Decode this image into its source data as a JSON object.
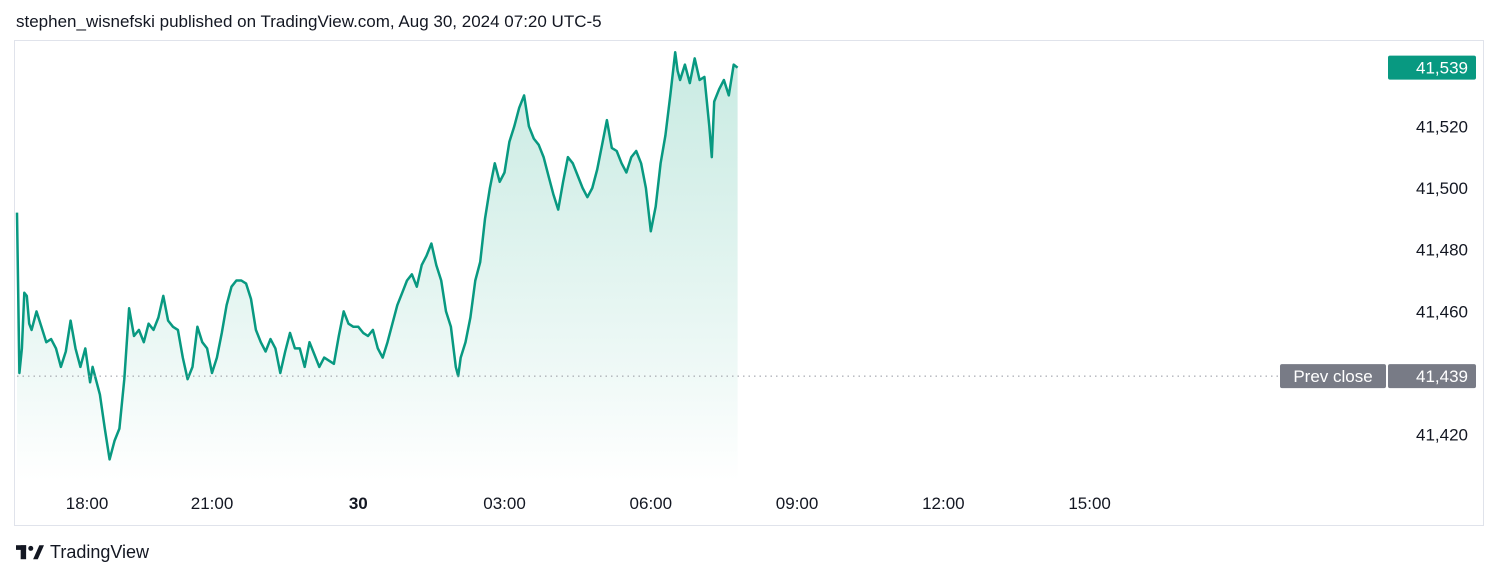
{
  "header": {
    "text": "stephen_wisnefski published on TradingView.com, Aug 30, 2024 07:20 UTC-5"
  },
  "footer": {
    "brand": "TradingView"
  },
  "colors": {
    "line": "#089981",
    "fill_top": "#b7e4d9",
    "last_price_bg": "#089981",
    "prev_close_bg": "#787b86",
    "grid": "#e0e3eb",
    "text": "#131722"
  },
  "chart_data": {
    "type": "area",
    "title": "",
    "xlabel": "",
    "ylabel": "",
    "ylim": [
      41405,
      41547
    ],
    "x_range_hours": [
      -7,
      18.7
    ],
    "x_axis": {
      "ticks": [
        {
          "label": "18:00",
          "hour": -6,
          "bold": false
        },
        {
          "label": "21:00",
          "hour": -3,
          "bold": false
        },
        {
          "label": "30",
          "hour": 0,
          "bold": true
        },
        {
          "label": "03:00",
          "hour": 3,
          "bold": false
        },
        {
          "label": "06:00",
          "hour": 6,
          "bold": false
        },
        {
          "label": "09:00",
          "hour": 9,
          "bold": false
        },
        {
          "label": "12:00",
          "hour": 12,
          "bold": false
        },
        {
          "label": "15:00",
          "hour": 15,
          "bold": false
        }
      ]
    },
    "y_axis": {
      "ticks": [
        41420,
        41460,
        41480,
        41500,
        41520
      ]
    },
    "prev_close": {
      "label": "Prev close",
      "value": 41439,
      "value_label": "41,439"
    },
    "last_price": {
      "value": 41539,
      "value_label": "41,539"
    },
    "series": [
      {
        "points": [
          [
            -7.0,
            41492
          ],
          [
            -6.95,
            41440
          ],
          [
            -6.9,
            41448
          ],
          [
            -6.85,
            41466
          ],
          [
            -6.8,
            41465
          ],
          [
            -6.75,
            41456
          ],
          [
            -6.7,
            41454
          ],
          [
            -6.6,
            41460
          ],
          [
            -6.5,
            41455
          ],
          [
            -6.4,
            41450
          ],
          [
            -6.3,
            41451
          ],
          [
            -6.2,
            41448
          ],
          [
            -6.1,
            41442
          ],
          [
            -6.0,
            41447
          ],
          [
            -5.9,
            41457
          ],
          [
            -5.8,
            41448
          ],
          [
            -5.7,
            41442
          ],
          [
            -5.6,
            41448
          ],
          [
            -5.5,
            41437
          ],
          [
            -5.45,
            41442
          ],
          [
            -5.3,
            41433
          ],
          [
            -5.2,
            41422
          ],
          [
            -5.1,
            41412
          ],
          [
            -5.0,
            41418
          ],
          [
            -4.9,
            41422
          ],
          [
            -4.8,
            41438
          ],
          [
            -4.7,
            41461
          ],
          [
            -4.6,
            41452
          ],
          [
            -4.5,
            41454
          ],
          [
            -4.4,
            41450
          ],
          [
            -4.3,
            41456
          ],
          [
            -4.2,
            41454
          ],
          [
            -4.1,
            41458
          ],
          [
            -4.0,
            41465
          ],
          [
            -3.9,
            41457
          ],
          [
            -3.8,
            41455
          ],
          [
            -3.7,
            41454
          ],
          [
            -3.6,
            41445
          ],
          [
            -3.5,
            41438
          ],
          [
            -3.4,
            41442
          ],
          [
            -3.3,
            41455
          ],
          [
            -3.2,
            41450
          ],
          [
            -3.1,
            41448
          ],
          [
            -3.0,
            41440
          ],
          [
            -2.9,
            41445
          ],
          [
            -2.8,
            41453
          ],
          [
            -2.7,
            41462
          ],
          [
            -2.6,
            41468
          ],
          [
            -2.5,
            41470
          ],
          [
            -2.4,
            41470
          ],
          [
            -2.3,
            41469
          ],
          [
            -2.2,
            41464
          ],
          [
            -2.1,
            41454
          ],
          [
            -2.0,
            41450
          ],
          [
            -1.9,
            41447
          ],
          [
            -1.8,
            41451
          ],
          [
            -1.7,
            41448
          ],
          [
            -1.6,
            41440
          ],
          [
            -1.5,
            41447
          ],
          [
            -1.4,
            41453
          ],
          [
            -1.3,
            41448
          ],
          [
            -1.2,
            41448
          ],
          [
            -1.1,
            41442
          ],
          [
            -1.0,
            41450
          ],
          [
            -0.9,
            41446
          ],
          [
            -0.8,
            41442
          ],
          [
            -0.7,
            41445
          ],
          [
            -0.6,
            41444
          ],
          [
            -0.5,
            41443
          ],
          [
            -0.4,
            41452
          ],
          [
            -0.3,
            41460
          ],
          [
            -0.2,
            41456
          ],
          [
            -0.1,
            41455
          ],
          [
            0.0,
            41455
          ],
          [
            0.1,
            41453
          ],
          [
            0.2,
            41452
          ],
          [
            0.3,
            41454
          ],
          [
            0.4,
            41448
          ],
          [
            0.5,
            41445
          ],
          [
            0.6,
            41450
          ],
          [
            0.7,
            41456
          ],
          [
            0.8,
            41462
          ],
          [
            0.9,
            41466
          ],
          [
            1.0,
            41470
          ],
          [
            1.1,
            41472
          ],
          [
            1.2,
            41468
          ],
          [
            1.3,
            41475
          ],
          [
            1.4,
            41478
          ],
          [
            1.5,
            41482
          ],
          [
            1.6,
            41475
          ],
          [
            1.7,
            41470
          ],
          [
            1.8,
            41460
          ],
          [
            1.9,
            41455
          ],
          [
            2.0,
            41442
          ],
          [
            2.05,
            41439
          ],
          [
            2.1,
            41445
          ],
          [
            2.2,
            41450
          ],
          [
            2.3,
            41458
          ],
          [
            2.4,
            41470
          ],
          [
            2.5,
            41476
          ],
          [
            2.6,
            41490
          ],
          [
            2.7,
            41500
          ],
          [
            2.8,
            41508
          ],
          [
            2.9,
            41502
          ],
          [
            3.0,
            41505
          ],
          [
            3.1,
            41515
          ],
          [
            3.2,
            41520
          ],
          [
            3.3,
            41526
          ],
          [
            3.4,
            41530
          ],
          [
            3.5,
            41520
          ],
          [
            3.6,
            41516
          ],
          [
            3.7,
            41514
          ],
          [
            3.8,
            41510
          ],
          [
            3.9,
            41504
          ],
          [
            4.0,
            41498
          ],
          [
            4.1,
            41493
          ],
          [
            4.2,
            41502
          ],
          [
            4.3,
            41510
          ],
          [
            4.4,
            41508
          ],
          [
            4.5,
            41504
          ],
          [
            4.6,
            41500
          ],
          [
            4.7,
            41497
          ],
          [
            4.8,
            41500
          ],
          [
            4.9,
            41506
          ],
          [
            5.0,
            41514
          ],
          [
            5.1,
            41522
          ],
          [
            5.2,
            41513
          ],
          [
            5.3,
            41512
          ],
          [
            5.4,
            41508
          ],
          [
            5.5,
            41505
          ],
          [
            5.6,
            41510
          ],
          [
            5.7,
            41512
          ],
          [
            5.8,
            41508
          ],
          [
            5.9,
            41500
          ],
          [
            6.0,
            41486
          ],
          [
            6.1,
            41494
          ],
          [
            6.2,
            41508
          ],
          [
            6.3,
            41517
          ],
          [
            6.4,
            41530
          ],
          [
            6.5,
            41544
          ],
          [
            6.55,
            41538
          ],
          [
            6.6,
            41535
          ],
          [
            6.7,
            41540
          ],
          [
            6.8,
            41534
          ],
          [
            6.9,
            41542
          ],
          [
            7.0,
            41535
          ],
          [
            7.1,
            41536
          ],
          [
            7.2,
            41520
          ],
          [
            7.25,
            41510
          ],
          [
            7.3,
            41528
          ],
          [
            7.4,
            41532
          ],
          [
            7.5,
            41535
          ],
          [
            7.6,
            41530
          ],
          [
            7.7,
            41540
          ],
          [
            7.78,
            41539
          ]
        ]
      }
    ]
  }
}
